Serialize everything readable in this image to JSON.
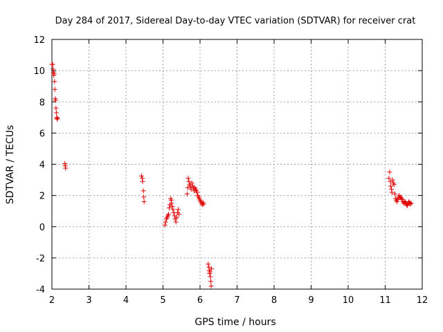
{
  "chart_data": {
    "type": "scatter",
    "title": "Day 284 of 2017, Sidereal Day-to-day VTEC variation (SDTVAR) for receiver crat",
    "xlabel": "GPS time / hours",
    "ylabel": "SDTVAR / TECUs",
    "xlim": [
      2,
      12
    ],
    "ylim": [
      -4,
      12
    ],
    "xticks": [
      "2",
      "3",
      "4",
      "5",
      "6",
      "7",
      "8",
      "9",
      "10",
      "11",
      "12"
    ],
    "yticks": [
      "-4",
      "-2",
      "0",
      "2",
      "4",
      "6",
      "8",
      "10",
      "12"
    ],
    "grid": true,
    "marker": "plus",
    "color": "#e00000",
    "series": [
      {
        "name": "SDTVAR",
        "points": [
          [
            2.0,
            10.4
          ],
          [
            2.02,
            10.4
          ],
          [
            2.03,
            10.1
          ],
          [
            2.04,
            9.9
          ],
          [
            2.05,
            9.7
          ],
          [
            2.06,
            9.8
          ],
          [
            2.07,
            9.3
          ],
          [
            2.08,
            8.8
          ],
          [
            2.09,
            8.2
          ],
          [
            2.1,
            8.1
          ],
          [
            2.11,
            7.6
          ],
          [
            2.12,
            7.3
          ],
          [
            2.13,
            7.0
          ],
          [
            2.14,
            6.9
          ],
          [
            2.15,
            6.95
          ],
          [
            2.35,
            4.05
          ],
          [
            2.36,
            3.9
          ],
          [
            2.37,
            3.75
          ],
          [
            4.42,
            3.25
          ],
          [
            4.44,
            3.1
          ],
          [
            4.45,
            2.9
          ],
          [
            4.47,
            2.3
          ],
          [
            4.48,
            1.9
          ],
          [
            4.49,
            1.6
          ],
          [
            5.05,
            0.1
          ],
          [
            5.07,
            0.3
          ],
          [
            5.09,
            0.5
          ],
          [
            5.11,
            0.6
          ],
          [
            5.13,
            0.7
          ],
          [
            5.15,
            0.8
          ],
          [
            5.17,
            1.2
          ],
          [
            5.19,
            1.4
          ],
          [
            5.21,
            1.8
          ],
          [
            5.22,
            1.7
          ],
          [
            5.23,
            1.5
          ],
          [
            5.25,
            1.3
          ],
          [
            5.27,
            1.1
          ],
          [
            5.29,
            0.9
          ],
          [
            5.31,
            0.7
          ],
          [
            5.33,
            0.5
          ],
          [
            5.35,
            0.3
          ],
          [
            5.37,
            0.6
          ],
          [
            5.39,
            0.9
          ],
          [
            5.41,
            1.1
          ],
          [
            5.43,
            0.8
          ],
          [
            5.65,
            2.1
          ],
          [
            5.67,
            2.5
          ],
          [
            5.68,
            3.1
          ],
          [
            5.7,
            2.9
          ],
          [
            5.72,
            2.7
          ],
          [
            5.74,
            2.6
          ],
          [
            5.76,
            2.4
          ],
          [
            5.78,
            2.8
          ],
          [
            5.8,
            2.6
          ],
          [
            5.82,
            2.5
          ],
          [
            5.84,
            2.3
          ],
          [
            5.86,
            2.5
          ],
          [
            5.88,
            2.4
          ],
          [
            5.9,
            2.3
          ],
          [
            5.92,
            2.2
          ],
          [
            5.94,
            2.0
          ],
          [
            5.96,
            1.9
          ],
          [
            5.98,
            1.8
          ],
          [
            6.0,
            1.7
          ],
          [
            6.02,
            1.6
          ],
          [
            6.04,
            1.5
          ],
          [
            6.06,
            1.4
          ],
          [
            6.08,
            1.55
          ],
          [
            6.1,
            1.45
          ],
          [
            6.22,
            -2.4
          ],
          [
            6.24,
            -2.6
          ],
          [
            6.25,
            -2.8
          ],
          [
            6.26,
            -3.0
          ],
          [
            6.27,
            -2.9
          ],
          [
            6.28,
            -3.2
          ],
          [
            6.29,
            -3.5
          ],
          [
            6.3,
            -3.8
          ],
          [
            6.31,
            -2.7
          ],
          [
            11.1,
            3.1
          ],
          [
            11.12,
            3.5
          ],
          [
            11.14,
            2.9
          ],
          [
            11.15,
            2.6
          ],
          [
            11.17,
            2.4
          ],
          [
            11.18,
            2.2
          ],
          [
            11.2,
            3.0
          ],
          [
            11.22,
            2.8
          ],
          [
            11.24,
            2.7
          ],
          [
            11.26,
            2.1
          ],
          [
            11.28,
            1.8
          ],
          [
            11.3,
            1.7
          ],
          [
            11.32,
            1.6
          ],
          [
            11.34,
            1.75
          ],
          [
            11.36,
            1.9
          ],
          [
            11.38,
            2.0
          ],
          [
            11.4,
            1.85
          ],
          [
            11.42,
            1.9
          ],
          [
            11.44,
            1.8
          ],
          [
            11.46,
            1.75
          ],
          [
            11.48,
            1.6
          ],
          [
            11.5,
            1.5
          ],
          [
            11.52,
            1.55
          ],
          [
            11.54,
            1.6
          ],
          [
            11.56,
            1.5
          ],
          [
            11.58,
            1.4
          ],
          [
            11.6,
            1.35
          ],
          [
            11.62,
            1.5
          ],
          [
            11.64,
            1.6
          ],
          [
            11.66,
            1.55
          ],
          [
            11.68,
            1.45
          ],
          [
            11.7,
            1.5
          ]
        ]
      }
    ]
  }
}
